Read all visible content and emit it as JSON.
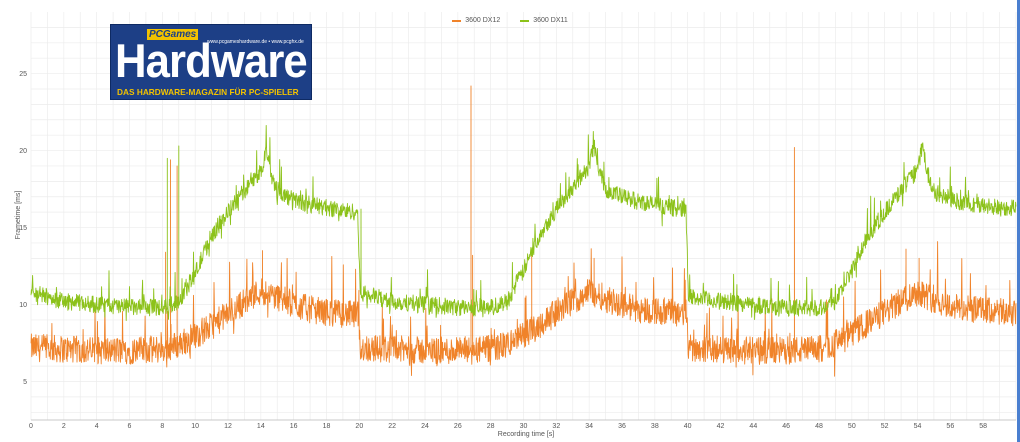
{
  "chart_data": {
    "type": "line",
    "xlabel": "Recording time [s]",
    "ylabel": "Frametime [ms]",
    "xlim": [
      0,
      60
    ],
    "ylim": [
      2.5,
      29
    ],
    "x_ticks": [
      0,
      2,
      4,
      6,
      8,
      10,
      12,
      14,
      16,
      18,
      20,
      22,
      24,
      26,
      28,
      30,
      32,
      34,
      36,
      38,
      40,
      42,
      44,
      46,
      48,
      50,
      52,
      54,
      56,
      58
    ],
    "y_ticks": [
      5,
      10,
      15,
      20,
      25
    ],
    "grid": true,
    "legend": "top-center",
    "series": [
      {
        "name": "3600 DX12",
        "color": "#f0832a",
        "noise": 0.9,
        "x": [
          0,
          2,
          4,
          6,
          8,
          9,
          10,
          11,
          12,
          13,
          14,
          15,
          16,
          17,
          18,
          19,
          19.9,
          20.05,
          22,
          24,
          26,
          28,
          29,
          30,
          31,
          32,
          33,
          34,
          35,
          36,
          37,
          38,
          39,
          39.9,
          40.05,
          42,
          44,
          46,
          48,
          49,
          50,
          51,
          52,
          53,
          54,
          55,
          56,
          57,
          58,
          59,
          60
        ],
        "y": [
          7.2,
          7.1,
          7.0,
          7.0,
          7.1,
          7.4,
          8.0,
          8.6,
          9.4,
          10.2,
          10.9,
          10.5,
          10.0,
          9.7,
          9.5,
          9.4,
          9.3,
          7.2,
          7.1,
          7.0,
          7.0,
          7.1,
          7.4,
          8.0,
          8.7,
          9.5,
          10.2,
          10.9,
          10.4,
          10.0,
          9.7,
          9.6,
          9.5,
          9.4,
          7.2,
          7.1,
          7.0,
          7.0,
          7.1,
          7.5,
          8.1,
          8.8,
          9.5,
          10.2,
          10.9,
          10.3,
          9.9,
          9.7,
          9.6,
          9.5,
          9.4
        ],
        "spikes": [
          [
            8.2,
            13.4
          ],
          [
            8.5,
            19.4
          ],
          [
            8.9,
            19.0
          ],
          [
            14.1,
            13.5
          ],
          [
            26.8,
            24.2
          ],
          [
            26.9,
            13.2
          ],
          [
            30.5,
            13.2
          ],
          [
            34.3,
            13.0
          ],
          [
            46.5,
            20.2
          ],
          [
            53.3,
            13.6
          ],
          [
            54.1,
            13.0
          ]
        ]
      },
      {
        "name": "3600 DX11",
        "color": "#8cc21a",
        "noise": 0.55,
        "x": [
          0,
          2,
          4,
          6,
          8,
          9,
          10,
          11,
          12,
          13,
          13.5,
          14,
          14.3,
          14.6,
          15,
          16,
          17,
          18,
          19,
          19.9,
          20.05,
          22,
          24,
          26,
          28,
          29,
          30,
          31,
          32,
          33,
          33.5,
          34,
          34.3,
          34.6,
          35,
          36,
          37,
          38,
          39,
          39.9,
          40.05,
          42,
          44,
          46,
          48,
          49,
          50,
          51,
          52,
          53,
          53.5,
          54,
          54.3,
          54.6,
          55,
          56,
          57,
          58,
          59,
          60
        ],
        "y": [
          10.8,
          10.2,
          10.0,
          9.8,
          9.8,
          10.2,
          12.0,
          14.5,
          16.0,
          17.4,
          18.0,
          18.6,
          20.0,
          18.6,
          17.3,
          16.8,
          16.5,
          16.3,
          16.1,
          16.0,
          10.8,
          10.2,
          10.0,
          9.8,
          9.8,
          10.2,
          12.2,
          14.6,
          16.2,
          17.6,
          18.3,
          19.0,
          20.4,
          18.8,
          17.5,
          17.0,
          16.7,
          16.5,
          16.3,
          16.2,
          10.5,
          10.2,
          10.0,
          9.8,
          9.8,
          10.2,
          12.2,
          14.5,
          16.0,
          17.4,
          18.1,
          18.7,
          20.3,
          18.6,
          17.3,
          16.8,
          16.6,
          16.4,
          16.3,
          16.3
        ],
        "spikes": [
          [
            8.3,
            19.5
          ],
          [
            9.0,
            20.3
          ],
          [
            20.1,
            16.2
          ]
        ]
      }
    ]
  },
  "logo": {
    "badge": "PCGames",
    "url": "www.pcgameshardware.de • www.pcghx.de",
    "wordmark": "Hardware",
    "tagline": "DAS HARDWARE-MAGAZIN FÜR PC-SPIELER"
  }
}
